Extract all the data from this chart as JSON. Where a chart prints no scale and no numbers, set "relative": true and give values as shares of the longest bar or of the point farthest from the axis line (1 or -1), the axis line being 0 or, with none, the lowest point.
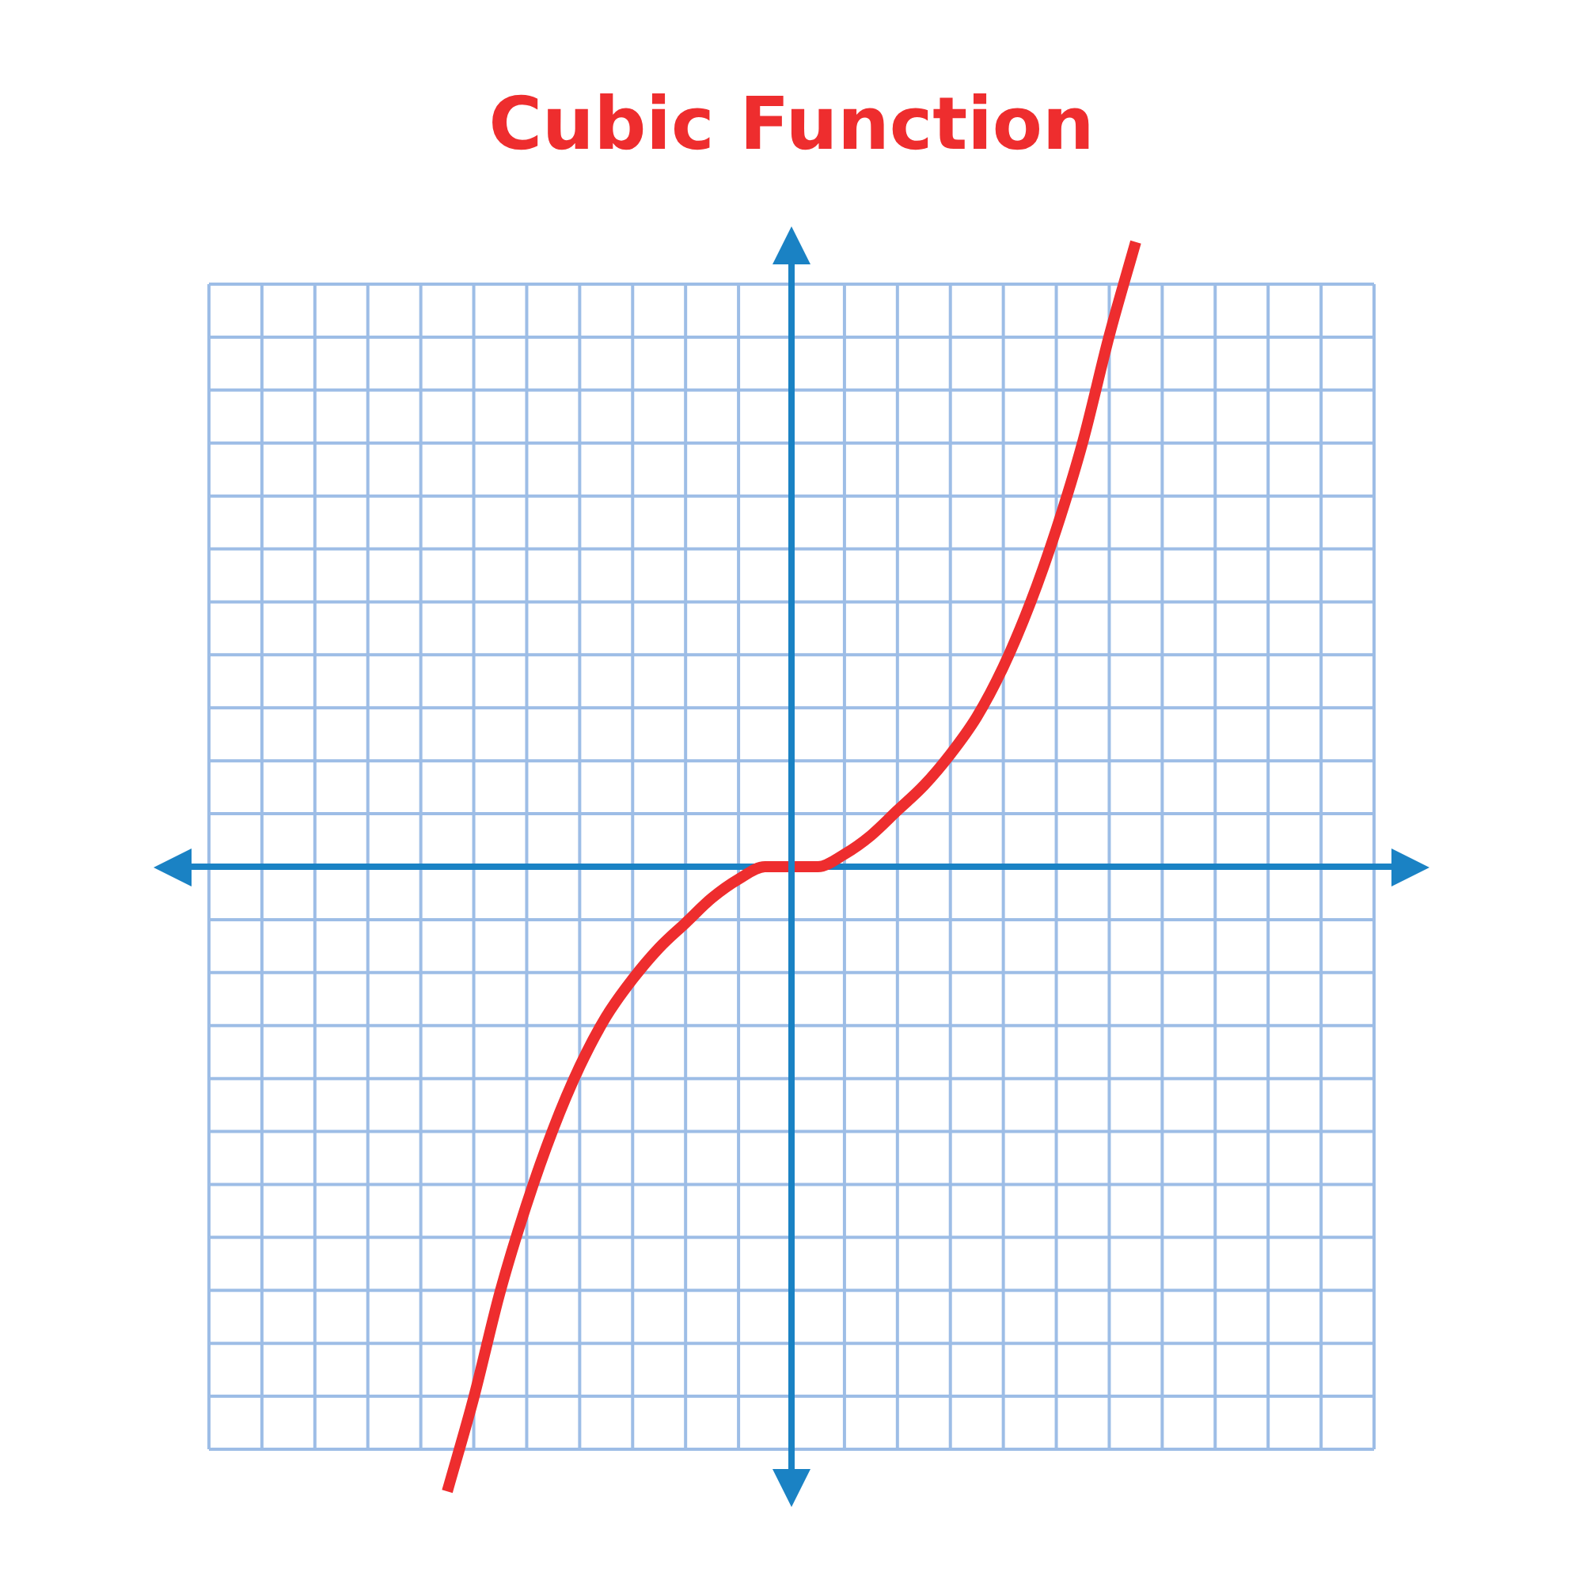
{
  "chart_data": {
    "type": "line",
    "title": "Cubic Function",
    "relative": true,
    "ref_lines": [
      {
        "axis": "y",
        "value": 0,
        "color": "#1a82c4"
      }
    ],
    "grid": true,
    "marker": "none",
    "color": "#ee2d2e",
    "categories": [
      null,
      null,
      null,
      null,
      null,
      null,
      null,
      null,
      null,
      null,
      null,
      null,
      null,
      null,
      null,
      null,
      null,
      null,
      null,
      null,
      null,
      null,
      null,
      null,
      null,
      null,
      null,
      null,
      null,
      null,
      null,
      null,
      null,
      null,
      null,
      null,
      null,
      null,
      null,
      null,
      null,
      null,
      null,
      null,
      null
    ],
    "values": [
      null,
      null,
      null,
      null,
      null,
      null,
      null,
      null,
      null,
      -1,
      -0.85,
      -0.68,
      -0.54,
      -0.42,
      -0.32,
      -0.24,
      -0.18,
      -0.13,
      -0.09,
      -0.05,
      -0.02,
      0,
      0,
      0,
      0.02,
      0.05,
      0.09,
      0.13,
      0.18,
      0.24,
      0.32,
      0.42,
      0.54,
      0.68,
      0.85,
      1,
      null,
      null,
      null,
      null,
      null,
      null,
      null,
      null,
      null
    ]
  }
}
